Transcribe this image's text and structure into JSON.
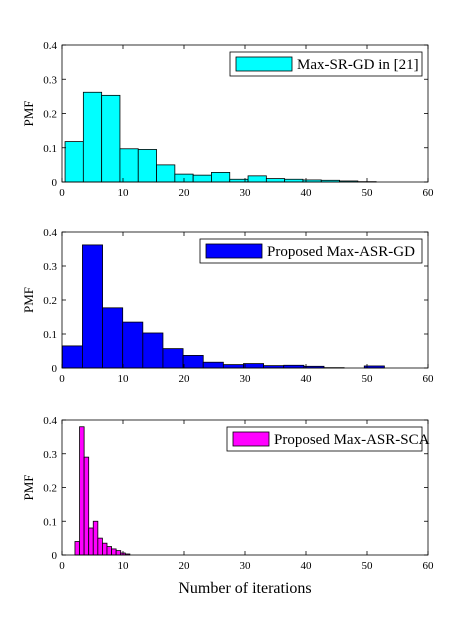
{
  "chart_data": [
    {
      "type": "bar",
      "xlabel": "",
      "ylabel": "PMF",
      "xlim": [
        0,
        60
      ],
      "ylim": [
        0,
        0.4
      ],
      "xticks": [
        "0",
        "10",
        "20",
        "30",
        "40",
        "50",
        "60"
      ],
      "yticks": [
        "0",
        "0.1",
        "0.2",
        "0.3",
        "0.4"
      ],
      "grid": false,
      "legend_position": "top-right",
      "series": [
        {
          "name": "Max-SR-GD in [21]",
          "color": "#00ffff",
          "bin_width": 3,
          "x": [
            2,
            5,
            8,
            11,
            14,
            17,
            20,
            23,
            26,
            29,
            32,
            35,
            38,
            41,
            44,
            47,
            50
          ],
          "values": [
            0.118,
            0.262,
            0.253,
            0.097,
            0.095,
            0.05,
            0.023,
            0.02,
            0.028,
            0.008,
            0.018,
            0.01,
            0.008,
            0.006,
            0.005,
            0.003,
            0.001
          ]
        }
      ]
    },
    {
      "type": "bar",
      "xlabel": "",
      "ylabel": "PMF",
      "xlim": [
        0,
        60
      ],
      "ylim": [
        0,
        0.4
      ],
      "xticks": [
        "0",
        "10",
        "20",
        "30",
        "40",
        "50",
        "60"
      ],
      "yticks": [
        "0",
        "0.1",
        "0.2",
        "0.3",
        "0.4"
      ],
      "grid": false,
      "legend_position": "top-right",
      "series": [
        {
          "name": "Proposed Max-ASR-GD",
          "color": "#0000ff",
          "bin_width": 3.3,
          "x": [
            1.7,
            5,
            8.3,
            11.6,
            14.9,
            18.2,
            21.5,
            24.8,
            28.1,
            31.4,
            34.7,
            38,
            41.3,
            44.6,
            47.9,
            51.2
          ],
          "values": [
            0.065,
            0.362,
            0.177,
            0.135,
            0.103,
            0.057,
            0.037,
            0.017,
            0.01,
            0.013,
            0.007,
            0.008,
            0.005,
            0.001,
            0.0,
            0.006
          ]
        }
      ]
    },
    {
      "type": "bar",
      "xlabel": "Number of iterations",
      "ylabel": "PMF",
      "xlim": [
        0,
        60
      ],
      "ylim": [
        0,
        0.4
      ],
      "xticks": [
        "0",
        "10",
        "20",
        "30",
        "40",
        "50",
        "60"
      ],
      "yticks": [
        "0",
        "0.1",
        "0.2",
        "0.3",
        "0.4"
      ],
      "grid": false,
      "legend_position": "top-right",
      "series": [
        {
          "name": "Proposed Max-ASR-SCA",
          "color": "#ff00ff",
          "bin_width": 0.75,
          "x": [
            2.5,
            3.25,
            4,
            4.75,
            5.5,
            6.25,
            7,
            7.75,
            8.5,
            9.25,
            10,
            10.75
          ],
          "values": [
            0.04,
            0.38,
            0.29,
            0.08,
            0.1,
            0.05,
            0.035,
            0.025,
            0.018,
            0.013,
            0.006,
            0.003
          ]
        }
      ]
    }
  ]
}
